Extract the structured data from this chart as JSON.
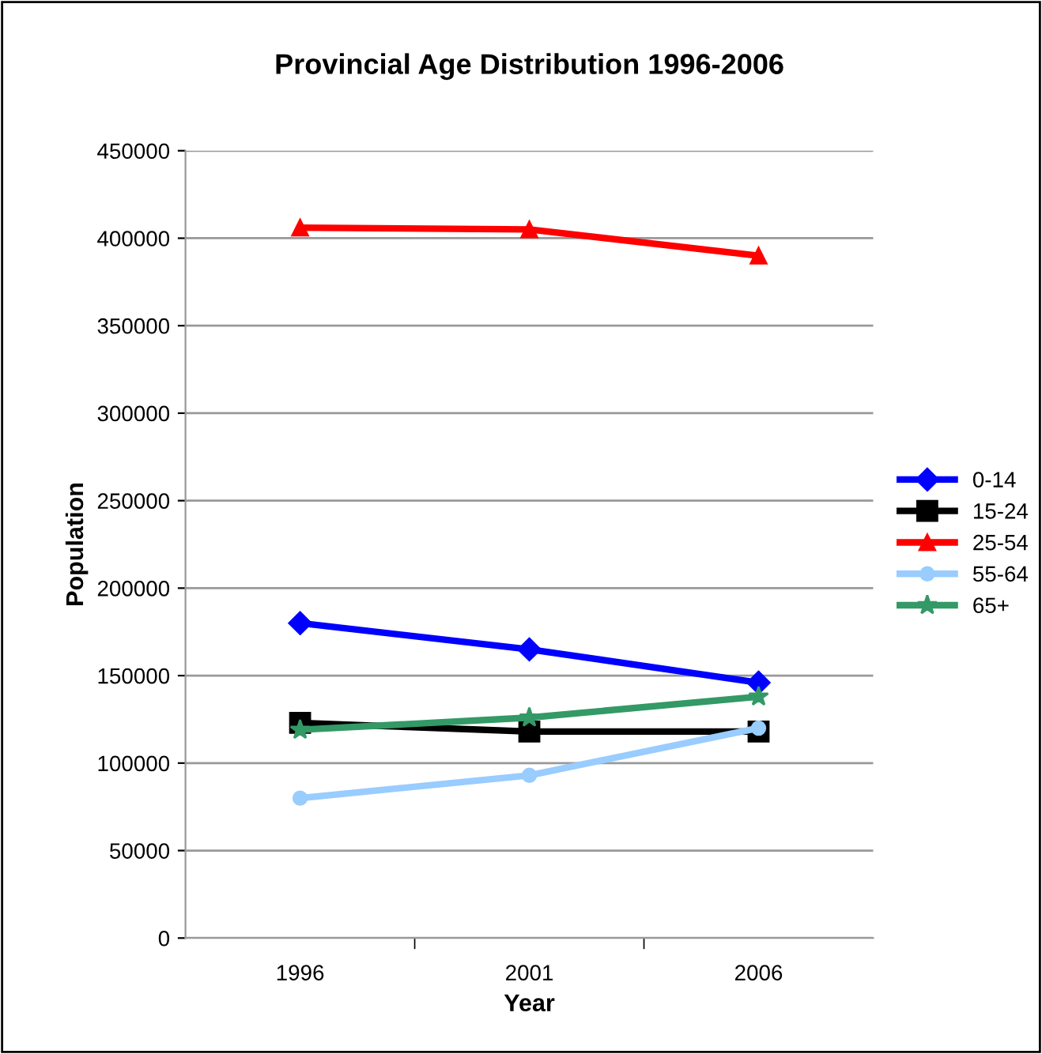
{
  "chart_data": {
    "type": "line",
    "title": "Provincial Age Distribution 1996-2006",
    "xlabel": "Year",
    "ylabel": "Population",
    "categories": [
      "1996",
      "2001",
      "2006"
    ],
    "series": [
      {
        "name": "0-14",
        "color": "#0000ff",
        "marker": "diamond",
        "values": [
          180000,
          165000,
          146000
        ]
      },
      {
        "name": "15-24",
        "color": "#000000",
        "marker": "square",
        "values": [
          123000,
          118000,
          118000
        ]
      },
      {
        "name": "25-54",
        "color": "#ff0000",
        "marker": "triangle",
        "values": [
          406000,
          405000,
          390000
        ]
      },
      {
        "name": "55-64",
        "color": "#99ccff",
        "marker": "circle",
        "values": [
          80000,
          93000,
          120000
        ]
      },
      {
        "name": "65+",
        "color": "#339966",
        "marker": "star",
        "values": [
          119000,
          126000,
          138000
        ]
      }
    ],
    "ylim": [
      0,
      450000
    ],
    "yticks": [
      0,
      50000,
      100000,
      150000,
      200000,
      250000,
      300000,
      350000,
      400000,
      450000
    ],
    "grid": "y",
    "legend": "right",
    "line_style": "solid"
  }
}
